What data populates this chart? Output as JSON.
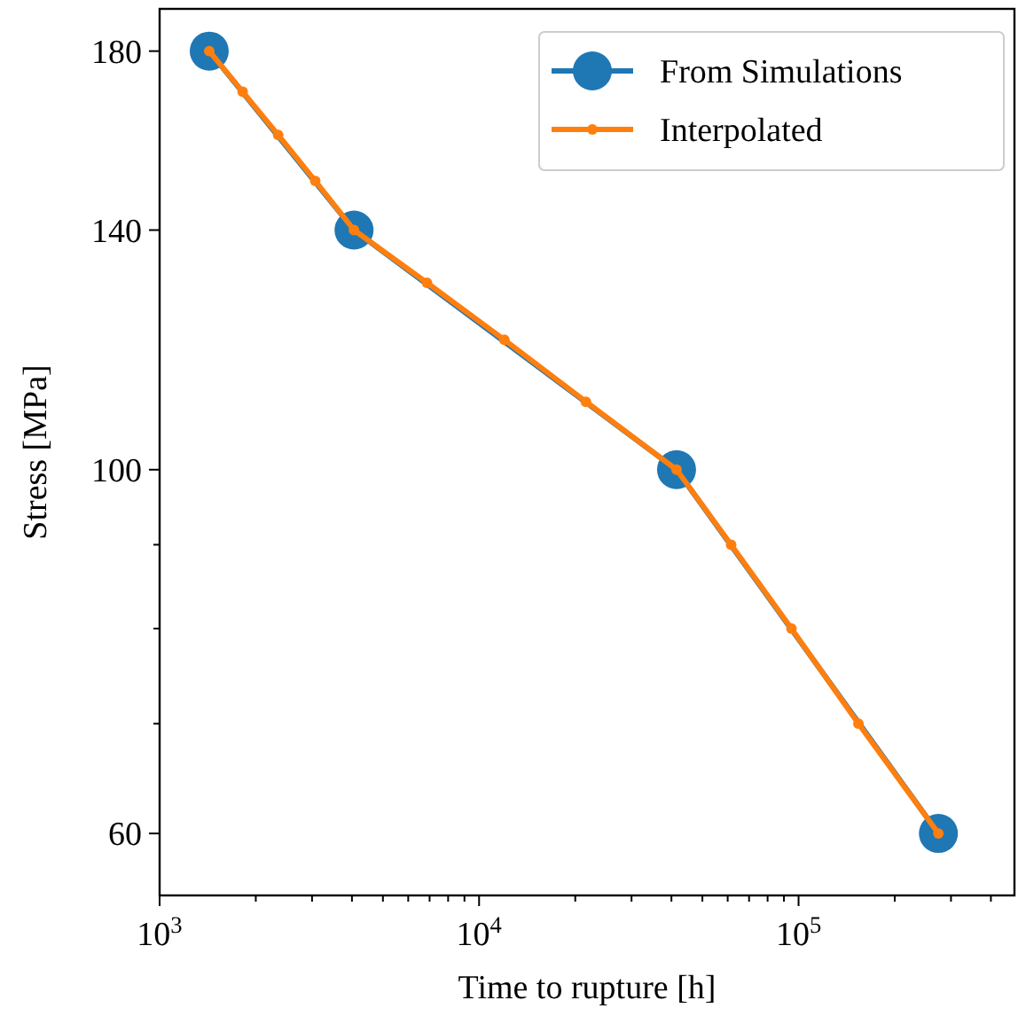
{
  "chart_data": {
    "type": "line",
    "xlabel": "Time to rupture [h]",
    "ylabel": "Stress [MPa]",
    "log": "xy",
    "marker": "circle",
    "legend": "top right",
    "xlim": [
      1000,
      474000
    ],
    "ylim": [
      55,
      191
    ],
    "xticks": [
      {
        "value": 1000,
        "label": "10$^{3}$"
      },
      {
        "value": 2000,
        "label": null
      },
      {
        "value": 3000,
        "label": null
      },
      {
        "value": 4000,
        "label": null
      },
      {
        "value": 5000,
        "label": null
      },
      {
        "value": 6000,
        "label": null
      },
      {
        "value": 7000,
        "label": null
      },
      {
        "value": 8000,
        "label": null
      },
      {
        "value": 9000,
        "label": null
      },
      {
        "value": 10000,
        "label": "10$^{4}$"
      },
      {
        "value": 20000,
        "label": null
      },
      {
        "value": 30000,
        "label": null
      },
      {
        "value": 40000,
        "label": null
      },
      {
        "value": 50000,
        "label": null
      },
      {
        "value": 60000,
        "label": null
      },
      {
        "value": 70000,
        "label": null
      },
      {
        "value": 80000,
        "label": null
      },
      {
        "value": 90000,
        "label": null
      },
      {
        "value": 100000,
        "label": "10$^{5}$"
      },
      {
        "value": 200000,
        "label": null
      },
      {
        "value": 300000,
        "label": null
      },
      {
        "value": 400000,
        "label": null
      }
    ],
    "yticks": [
      60,
      {
        "value": 70,
        "label": null
      },
      {
        "value": 80,
        "label": null
      },
      {
        "value": 90,
        "label": null
      },
      100,
      140,
      180
    ],
    "series": [
      {
        "name": "From Simulations",
        "color": "#1f77b4",
        "x": [
          1430,
          4060,
          41500,
          274000
        ],
        "values": [
          180,
          140,
          100,
          60
        ]
      },
      {
        "name": "Interpolated",
        "color": "#ff7f0e",
        "x": [
          1430,
          1820,
          2350,
          3070,
          4060,
          6870,
          12000,
          21600,
          41500,
          61500,
          95000,
          154000,
          274000
        ],
        "values": [
          180,
          170,
          160,
          150,
          140,
          130,
          120,
          110,
          100,
          90,
          80,
          70,
          60
        ]
      }
    ]
  }
}
